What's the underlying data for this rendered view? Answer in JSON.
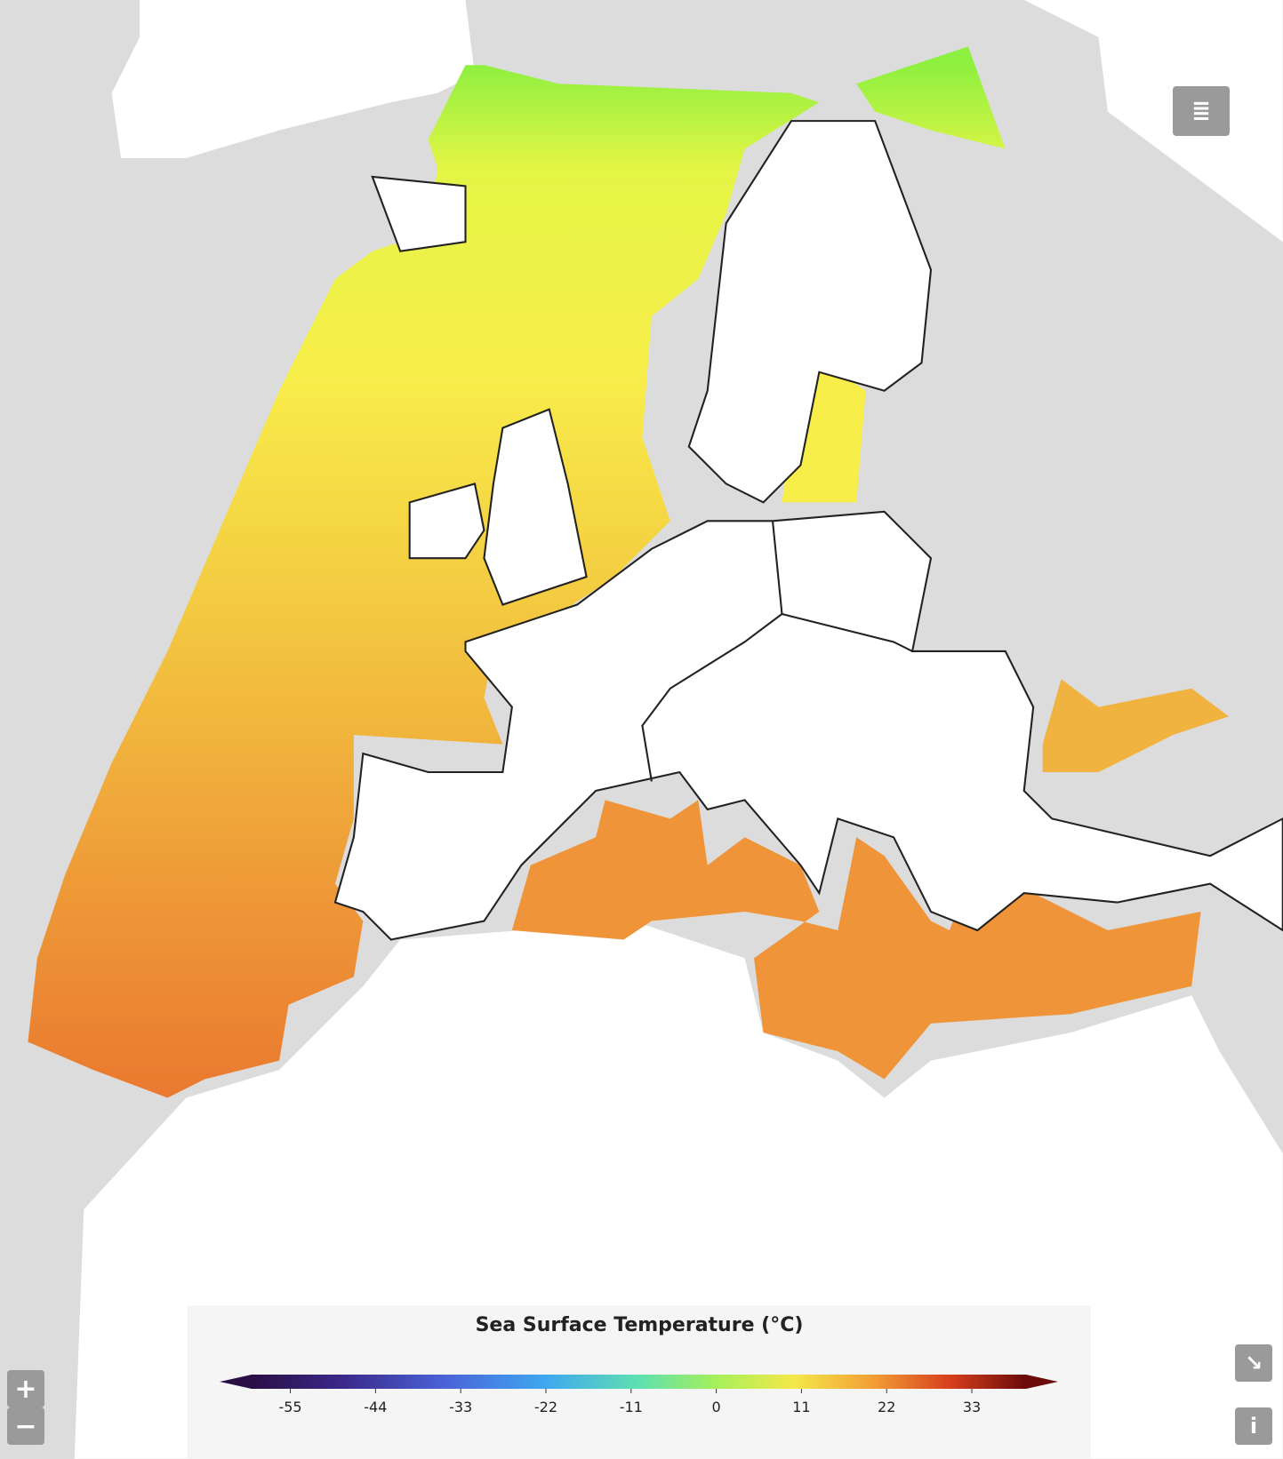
{
  "legend": {
    "title": "Sea Surface Temperature (°C)",
    "range": [
      -60,
      40
    ],
    "ticks": [
      -55,
      -44,
      -33,
      -22,
      -11,
      0,
      11,
      22,
      33
    ]
  },
  "controls": {
    "zoom_in": "+",
    "zoom_out": "−",
    "info": "i"
  }
}
